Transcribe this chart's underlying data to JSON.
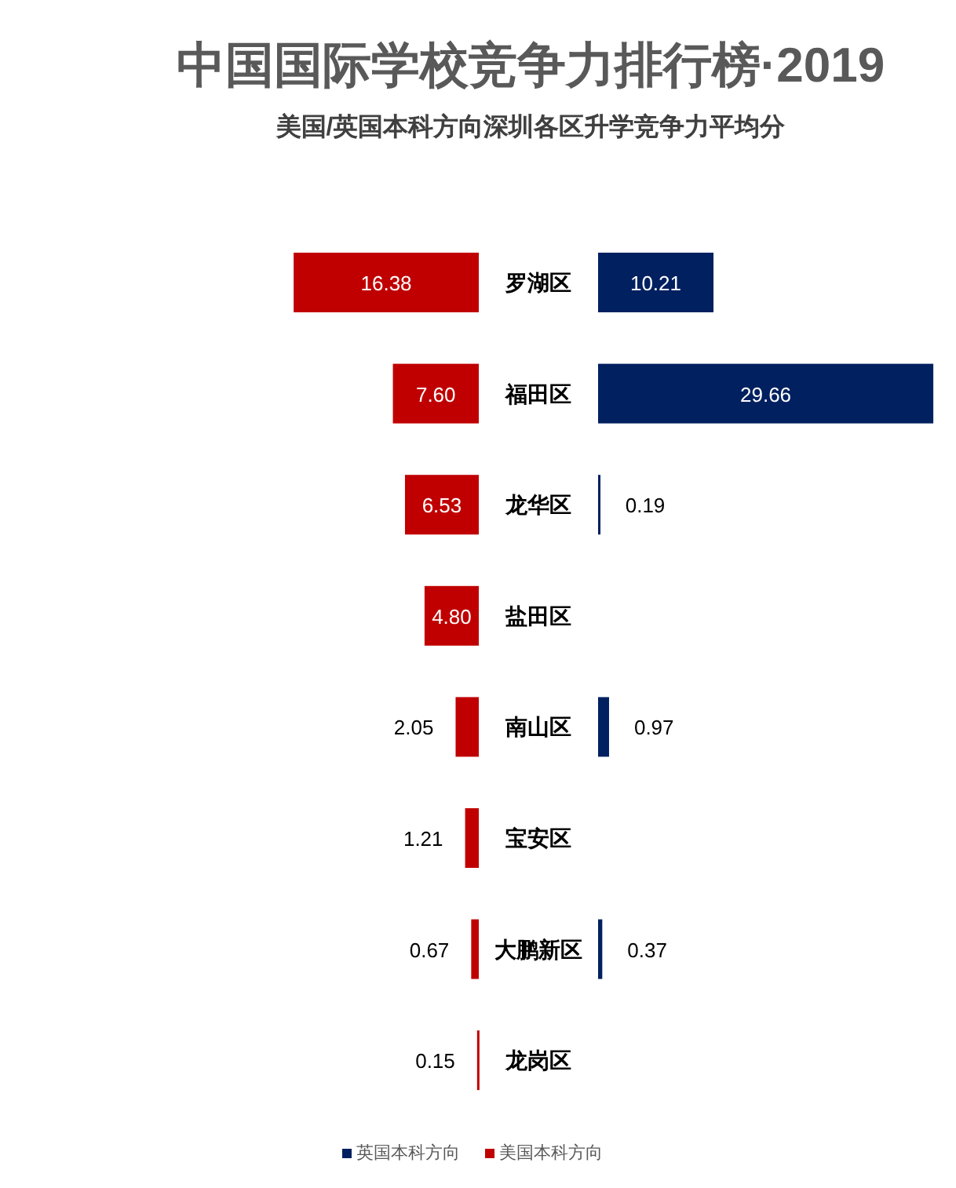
{
  "chart_data": [
    {
      "type": "bar",
      "orientation": "horizontal",
      "title": "中国国际学校竞争力排行榜·2019",
      "subtitle": "美国/英国本科方向深圳各区升学竞争力平均分",
      "categories": [
        "罗湖区",
        "福田区",
        "龙华区",
        "盐田区",
        "南山区",
        "宝安区",
        "大鹏新区",
        "龙岗区"
      ],
      "series": [
        {
          "name": "美国本科方向",
          "color": "#c00000",
          "values": [
            16.38,
            7.6,
            6.53,
            4.8,
            2.05,
            1.21,
            0.67,
            0.15
          ],
          "value_labels": [
            "16.38",
            "7.60",
            "6.53",
            "4.80",
            "2.05",
            "1.21",
            "0.67",
            "0.15"
          ]
        }
      ],
      "legend": "bottom"
    },
    {
      "type": "bar",
      "orientation": "horizontal",
      "categories": [
        null,
        null,
        null,
        null,
        null,
        null,
        null,
        null
      ],
      "series": [
        {
          "name": "英国本科方向",
          "color": "#002060",
          "values": [
            10.21,
            29.66,
            0.19,
            null,
            0.97,
            null,
            0.37,
            null
          ],
          "value_labels": [
            "10.21",
            "29.66",
            "0.19",
            null,
            "0.97",
            null,
            "0.37",
            null
          ]
        }
      ],
      "legend": "bottom"
    }
  ]
}
